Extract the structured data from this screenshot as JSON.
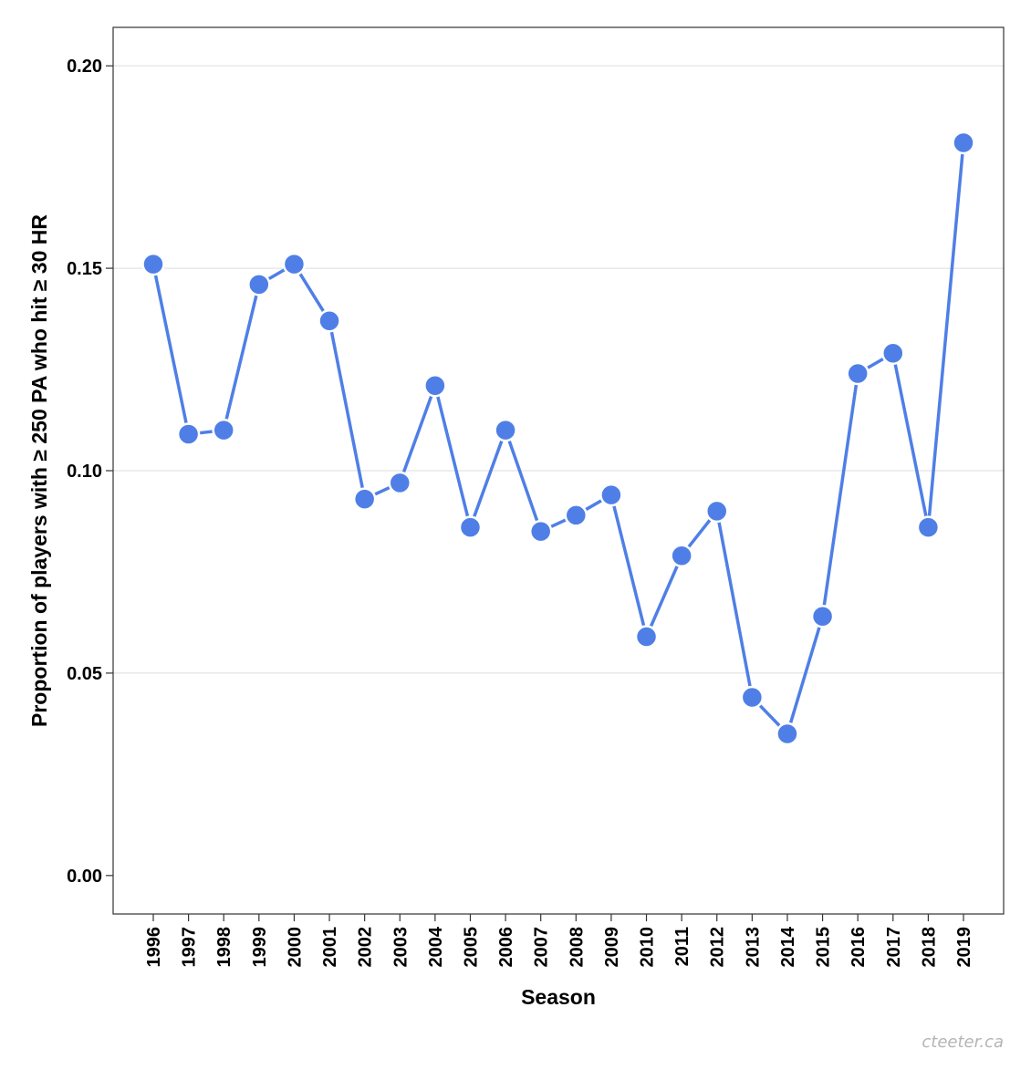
{
  "chart_data": {
    "type": "line",
    "title": "",
    "xlabel": "Season",
    "ylabel": "Proportion of players with ≥ 250 PA who hit ≥ 30 HR",
    "x": [
      "1996",
      "1997",
      "1998",
      "1999",
      "2000",
      "2001",
      "2002",
      "2003",
      "2004",
      "2005",
      "2006",
      "2007",
      "2008",
      "2009",
      "2010",
      "2011",
      "2012",
      "2013",
      "2014",
      "2015",
      "2016",
      "2017",
      "2018",
      "2019"
    ],
    "series": [
      {
        "values": [
          0.151,
          0.109,
          0.11,
          0.146,
          0.151,
          0.137,
          0.093,
          0.097,
          0.121,
          0.086,
          0.11,
          0.085,
          0.089,
          0.094,
          0.059,
          0.079,
          0.09,
          0.044,
          0.035,
          0.064,
          0.124,
          0.129,
          0.086,
          0.181
        ]
      }
    ],
    "ylim": [
      -0.0095,
      0.2095
    ],
    "yticks": [
      "0.00",
      "0.05",
      "0.10",
      "0.15",
      "0.20"
    ],
    "ytick_values": [
      0.0,
      0.05,
      0.1,
      0.15,
      0.2
    ],
    "grid": "horizontal major",
    "legend": "none",
    "colors": {
      "series": "#4f7fe6",
      "marker_outline": "#ffffff",
      "grid": "#dcdcdc",
      "frame": "#333333"
    }
  },
  "watermark": "cteeter.ca"
}
